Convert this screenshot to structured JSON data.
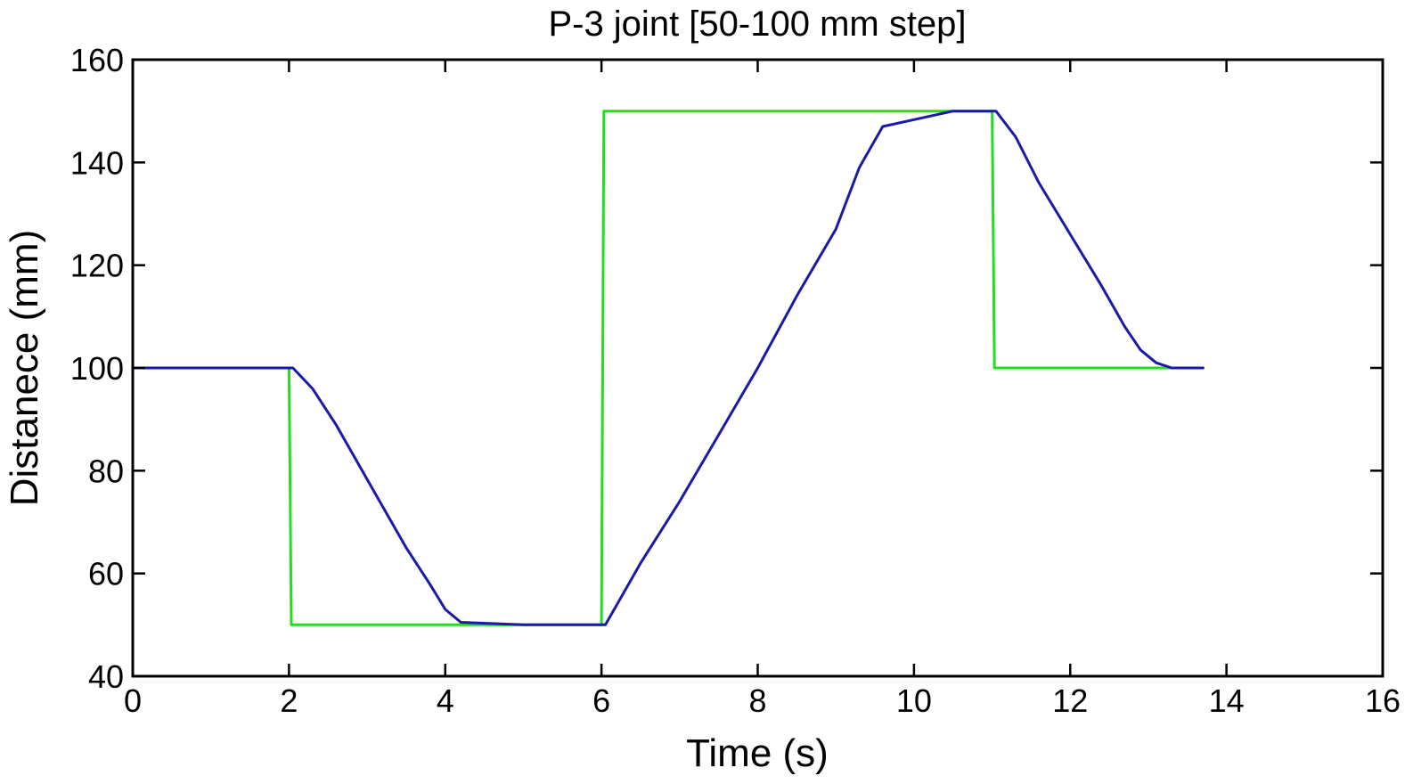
{
  "chart_data": {
    "type": "line",
    "title": "P-3 joint [50-100 mm step]",
    "xlabel": "Time (s)",
    "ylabel": "Distanece (mm)",
    "xlim": [
      0,
      16
    ],
    "ylim": [
      40,
      160
    ],
    "xticks": [
      0,
      2,
      4,
      6,
      8,
      10,
      12,
      14,
      16
    ],
    "yticks": [
      40,
      60,
      80,
      100,
      120,
      140,
      160
    ],
    "grid": false,
    "legend": "none",
    "series": [
      {
        "color": "#22dd22",
        "x": [
          0,
          2.0,
          2.03,
          6.0,
          6.03,
          11.0,
          11.03,
          13.7
        ],
        "y": [
          100,
          100,
          50,
          50,
          150,
          150,
          100,
          100
        ]
      },
      {
        "color": "#1a1aa8",
        "x": [
          0,
          2.0,
          2.05,
          2.3,
          2.6,
          2.9,
          3.2,
          3.5,
          3.8,
          4.0,
          4.2,
          5.0,
          6.0,
          6.05,
          6.2,
          6.5,
          7.0,
          7.5,
          8.0,
          8.5,
          9.0,
          9.3,
          9.6,
          10.5,
          11.0,
          11.05,
          11.3,
          11.6,
          12.0,
          12.4,
          12.7,
          12.9,
          13.1,
          13.3,
          13.7
        ],
        "y": [
          100,
          100,
          100,
          96,
          89,
          81,
          73,
          65,
          58,
          53,
          50.5,
          50,
          50,
          50,
          54,
          62,
          74,
          87,
          100,
          114,
          127,
          139,
          147,
          150,
          150,
          150,
          145,
          136,
          126,
          116,
          108,
          103.5,
          101,
          100,
          100
        ]
      }
    ]
  }
}
